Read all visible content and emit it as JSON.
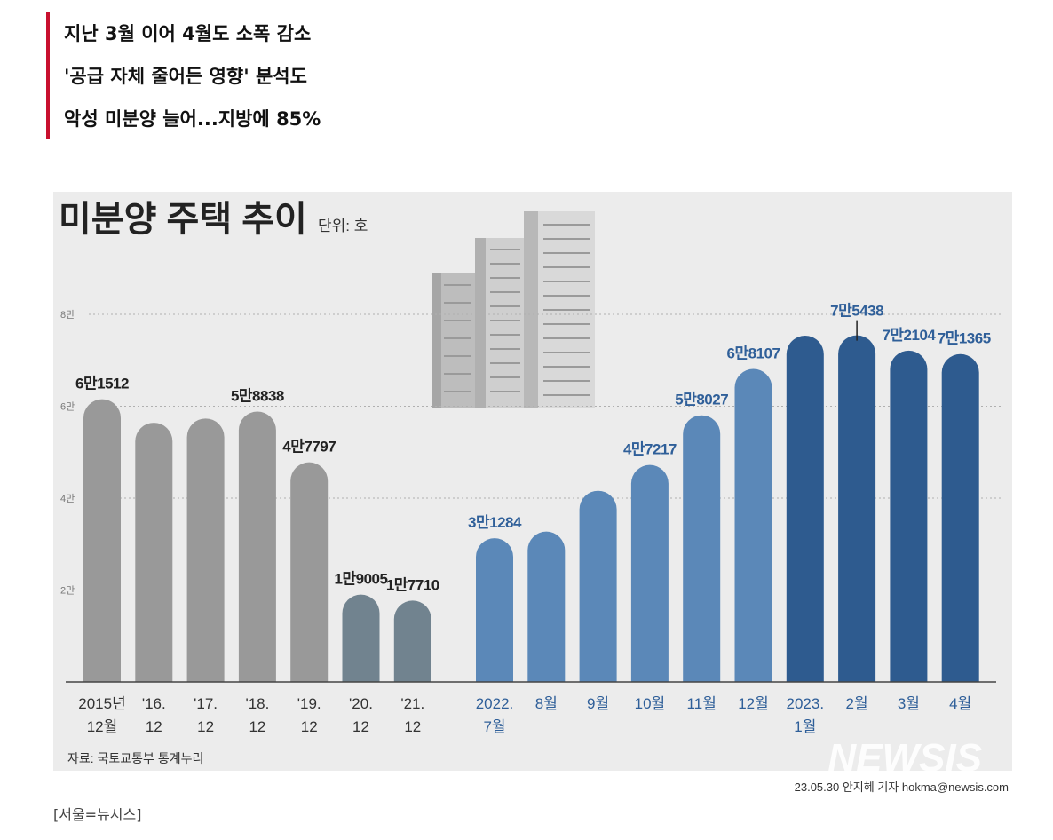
{
  "headline": {
    "lines": [
      "지난 3월 이어 4월도 소폭 감소",
      "'공급 자체 줄어든 영향' 분석도",
      "악성 미분양 늘어...지방에 85%"
    ]
  },
  "chart_data": {
    "type": "bar",
    "title": "미분양 주택 추이",
    "unit_label": "단위: 호",
    "ylim": [
      0,
      80000
    ],
    "y_ticks": [
      {
        "value": 20000,
        "label": "2만"
      },
      {
        "value": 40000,
        "label": "4만"
      },
      {
        "value": 60000,
        "label": "6만"
      },
      {
        "value": 80000,
        "label": "8만"
      }
    ],
    "bars": [
      {
        "cat1": "2015년",
        "cat2": "12월",
        "value": 61512,
        "label": "6만1512",
        "color": "#999999"
      },
      {
        "cat1": "'16.",
        "cat2": "12",
        "value": 56413,
        "label": "",
        "color": "#999999"
      },
      {
        "cat1": "'17.",
        "cat2": "12",
        "value": 57330,
        "label": "",
        "color": "#999999"
      },
      {
        "cat1": "'18.",
        "cat2": "12",
        "value": 58838,
        "label": "5만8838",
        "color": "#999999"
      },
      {
        "cat1": "'19.",
        "cat2": "12",
        "value": 47797,
        "label": "4만7797",
        "color": "#999999"
      },
      {
        "cat1": "'20.",
        "cat2": "12",
        "value": 19005,
        "label": "1만9005",
        "color": "#71838f"
      },
      {
        "cat1": "'21.",
        "cat2": "12",
        "value": 17710,
        "label": "1만7710",
        "color": "#71838f"
      },
      {
        "cat1": "2022.",
        "cat2": "7월",
        "value": 31284,
        "label": "3만1284",
        "color": "#5b88b8"
      },
      {
        "cat1": "8월",
        "cat2": "",
        "value": 32722,
        "label": "",
        "color": "#5b88b8"
      },
      {
        "cat1": "9월",
        "cat2": "",
        "value": 41604,
        "label": "",
        "color": "#5b88b8"
      },
      {
        "cat1": "10월",
        "cat2": "",
        "value": 47217,
        "label": "4만7217",
        "color": "#5b88b8"
      },
      {
        "cat1": "11월",
        "cat2": "",
        "value": 58027,
        "label": "5만8027",
        "color": "#5b88b8"
      },
      {
        "cat1": "12월",
        "cat2": "",
        "value": 68107,
        "label": "6만8107",
        "color": "#5b88b8"
      },
      {
        "cat1": "2023.",
        "cat2": "1월",
        "value": 75359,
        "label": "",
        "color": "#2e5b8f"
      },
      {
        "cat1": "2월",
        "cat2": "",
        "value": 75438,
        "label": "7만5438",
        "color": "#2e5b8f"
      },
      {
        "cat1": "3월",
        "cat2": "",
        "value": 72104,
        "label": "7만2104",
        "color": "#2e5b8f"
      },
      {
        "cat1": "4월",
        "cat2": "",
        "value": 71365,
        "label": "7만1365",
        "color": "#2e5b8f"
      }
    ],
    "source": "자료: 국토교통부 통계누리"
  },
  "watermark": "NEWSIS",
  "byline": "23.05.30 안지혜 기자 hokma@newsis.com",
  "caption": "[서울=뉴시스]",
  "colors": {
    "accent_bar": "#c8102e",
    "label_gray": "#222222",
    "label_blue": "#2f5f99",
    "label_darkblue": "#2f5f99"
  }
}
